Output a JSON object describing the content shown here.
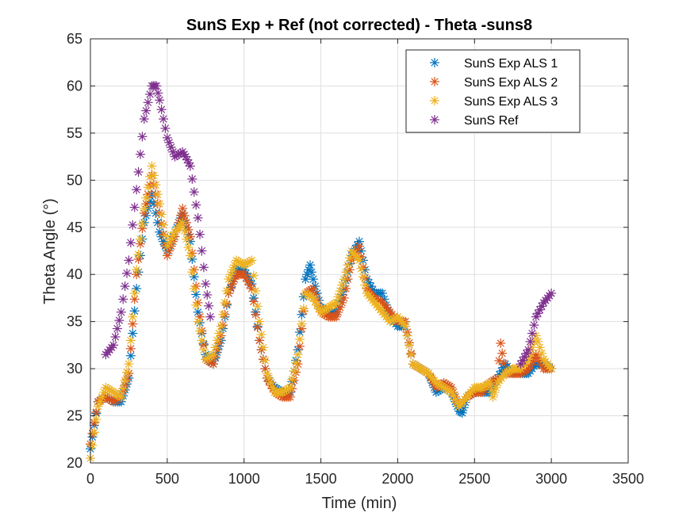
{
  "chart_data": {
    "type": "scatter",
    "title": "SunS Exp + Ref (not corrected) - Theta -suns8",
    "xlabel": "Time (min)",
    "ylabel": "Theta Angle (°)",
    "xlim": [
      0,
      3500
    ],
    "ylim": [
      20,
      65
    ],
    "xticks": [
      0,
      500,
      1000,
      1500,
      2000,
      2500,
      3000,
      3500
    ],
    "yticks": [
      20,
      25,
      30,
      35,
      40,
      45,
      50,
      55,
      60,
      65
    ],
    "grid": true,
    "legend_position": "top-right",
    "marker": "asterisk",
    "series": [
      {
        "name": "SunS Exp ALS 1",
        "color": "#0072BD",
        "x": [
          0,
          50,
          100,
          150,
          200,
          250,
          300,
          350,
          400,
          450,
          500,
          550,
          600,
          650,
          700,
          750,
          800,
          850,
          900,
          950,
          1000,
          1050,
          1100,
          1150,
          1200,
          1250,
          1300,
          1350,
          1400,
          1430,
          1450,
          1500,
          1550,
          1600,
          1650,
          1700,
          1750,
          1800,
          1850,
          1900,
          1950,
          2000,
          2050,
          2100,
          2150,
          2200,
          2250,
          2300,
          2350,
          2400,
          2420,
          2450,
          2500,
          2550,
          2600,
          2650,
          2700,
          2750,
          2800,
          2850,
          2900,
          2950,
          3000
        ],
        "y": [
          21.5,
          26.5,
          27.0,
          26.5,
          26.5,
          29.0,
          38.5,
          45.5,
          48.5,
          44.5,
          42.5,
          44.5,
          46.5,
          43.5,
          36.0,
          31.5,
          30.5,
          33.0,
          38.0,
          40.5,
          40.5,
          39.0,
          33.0,
          29.0,
          28.0,
          27.5,
          27.5,
          32.0,
          39.5,
          41.0,
          39.5,
          36.5,
          36.0,
          36.0,
          38.5,
          42.0,
          43.5,
          39.5,
          38.0,
          38.0,
          35.5,
          34.5,
          34.5,
          30.5,
          30.0,
          29.5,
          27.5,
          28.0,
          27.5,
          25.5,
          25.3,
          27.0,
          27.5,
          27.5,
          27.5,
          29.0,
          30.5,
          29.5,
          29.5,
          29.5,
          30.5,
          30.5,
          30.0
        ]
      },
      {
        "name": "SunS Exp ALS 2",
        "color": "#D95319",
        "x": [
          0,
          50,
          100,
          150,
          200,
          250,
          300,
          350,
          400,
          450,
          500,
          550,
          600,
          650,
          700,
          750,
          800,
          850,
          900,
          950,
          1000,
          1050,
          1100,
          1150,
          1200,
          1250,
          1300,
          1350,
          1400,
          1450,
          1500,
          1550,
          1600,
          1650,
          1700,
          1750,
          1800,
          1850,
          1900,
          1950,
          2000,
          2050,
          2100,
          2150,
          2200,
          2250,
          2300,
          2350,
          2400,
          2450,
          2500,
          2550,
          2600,
          2650,
          2670,
          2700,
          2750,
          2800,
          2850,
          2900,
          2950,
          3000
        ],
        "y": [
          22.0,
          26.5,
          27.0,
          26.5,
          27.0,
          29.5,
          40.0,
          46.5,
          50.5,
          46.5,
          42.0,
          44.0,
          47.0,
          44.0,
          37.0,
          31.0,
          30.5,
          33.5,
          38.0,
          40.0,
          40.0,
          38.5,
          33.0,
          29.0,
          27.5,
          27.0,
          27.0,
          30.5,
          38.0,
          38.5,
          36.0,
          35.5,
          35.5,
          37.5,
          41.5,
          43.0,
          38.5,
          37.5,
          37.0,
          36.0,
          35.0,
          35.0,
          30.5,
          30.0,
          29.5,
          28.0,
          28.5,
          28.0,
          26.0,
          27.0,
          27.5,
          27.5,
          28.5,
          29.0,
          32.7,
          29.5,
          29.5,
          29.5,
          30.0,
          31.5,
          30.0,
          30.0
        ]
      },
      {
        "name": "SunS Exp ALS 3",
        "color": "#EDB120",
        "x": [
          0,
          50,
          100,
          150,
          200,
          250,
          300,
          350,
          400,
          450,
          500,
          550,
          600,
          650,
          700,
          750,
          800,
          850,
          900,
          950,
          1000,
          1050,
          1100,
          1150,
          1200,
          1250,
          1300,
          1350,
          1400,
          1450,
          1500,
          1550,
          1600,
          1650,
          1700,
          1750,
          1800,
          1850,
          1900,
          1950,
          2000,
          2050,
          2100,
          2150,
          2200,
          2250,
          2300,
          2350,
          2400,
          2450,
          2500,
          2550,
          2600,
          2620,
          2650,
          2700,
          2750,
          2800,
          2850,
          2900,
          2950,
          3000
        ],
        "y": [
          20.5,
          26.0,
          28.0,
          27.5,
          27.0,
          30.5,
          40.5,
          47.0,
          51.5,
          47.5,
          43.0,
          44.5,
          45.5,
          42.0,
          35.0,
          31.0,
          31.5,
          34.5,
          39.5,
          41.5,
          41.0,
          41.5,
          35.0,
          29.5,
          27.5,
          27.5,
          28.0,
          31.5,
          38.0,
          37.5,
          36.0,
          36.5,
          37.0,
          39.5,
          42.5,
          41.5,
          38.0,
          37.0,
          36.0,
          35.0,
          35.5,
          34.5,
          30.5,
          30.0,
          29.5,
          28.5,
          28.0,
          27.5,
          26.0,
          27.0,
          28.0,
          28.0,
          28.5,
          27.0,
          28.5,
          29.5,
          30.0,
          30.0,
          31.0,
          33.5,
          31.0,
          30.0
        ]
      },
      {
        "name": "SunS Ref",
        "color": "#7E2F8E",
        "x": [
          100,
          150,
          200,
          250,
          300,
          350,
          400,
          430,
          450,
          500,
          550,
          600,
          620,
          650,
          700,
          750,
          780,
          2800,
          2850,
          2900,
          2950,
          3000
        ],
        "y": [
          31.5,
          32.5,
          36.0,
          41.5,
          49.0,
          56.5,
          60.0,
          60.0,
          58.5,
          54.5,
          52.5,
          53.0,
          52.5,
          51.5,
          46.0,
          39.0,
          35.5,
          30.5,
          32.0,
          35.5,
          37.0,
          38.0
        ]
      }
    ]
  }
}
